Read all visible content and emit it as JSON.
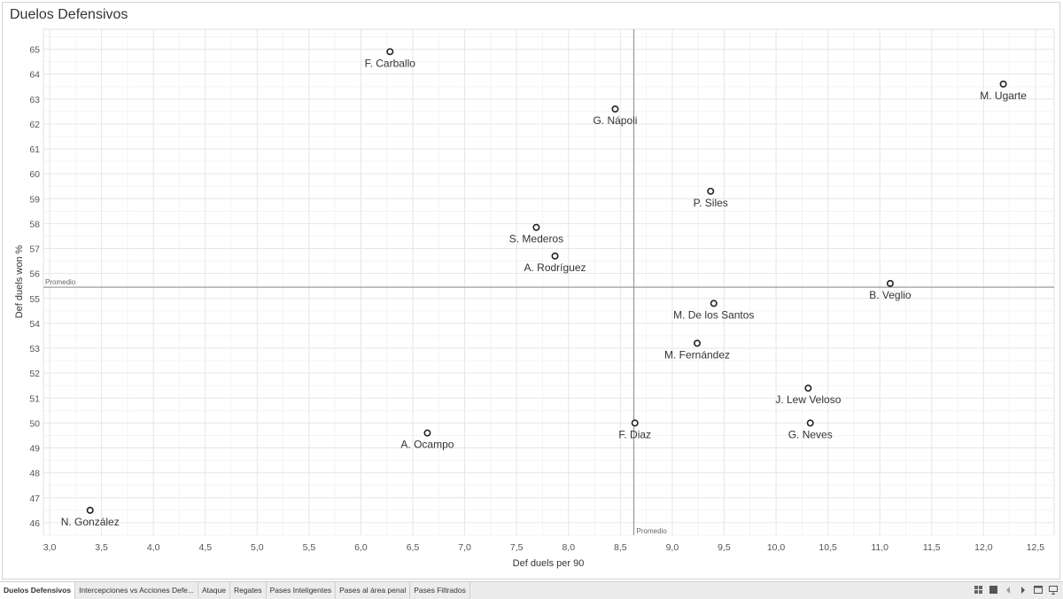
{
  "title": "Duelos Defensivos",
  "chart_data": {
    "type": "scatter",
    "title": "Duelos Defensivos",
    "xlabel": "Def duels per 90",
    "ylabel": "Def duels won %",
    "xlim": [
      2.94,
      12.68
    ],
    "ylim": [
      45.5,
      65.8
    ],
    "xticks": [
      3.0,
      3.5,
      4.0,
      4.5,
      5.0,
      5.5,
      6.0,
      6.5,
      7.0,
      7.5,
      8.0,
      8.5,
      9.0,
      9.5,
      10.0,
      10.5,
      11.0,
      11.5,
      12.0,
      12.5
    ],
    "xtick_labels": [
      "3,0",
      "3,5",
      "4,0",
      "4,5",
      "5,0",
      "5,5",
      "6,0",
      "6,5",
      "7,0",
      "7,5",
      "8,0",
      "8,5",
      "9,0",
      "9,5",
      "10,0",
      "10,5",
      "11,0",
      "11,5",
      "12,0",
      "12,5"
    ],
    "yticks": [
      46,
      47,
      48,
      49,
      50,
      51,
      52,
      53,
      54,
      55,
      56,
      57,
      58,
      59,
      60,
      61,
      62,
      63,
      64,
      65
    ],
    "ytick_labels": [
      "46",
      "47",
      "48",
      "49",
      "50",
      "51",
      "52",
      "53",
      "54",
      "55",
      "56",
      "57",
      "58",
      "59",
      "60",
      "61",
      "62",
      "63",
      "64",
      "65"
    ],
    "grid": true,
    "reference_lines": [
      {
        "axis": "x",
        "value": 8.63,
        "label": "Promedio"
      },
      {
        "axis": "y",
        "value": 55.45,
        "label": "Promedio"
      }
    ],
    "points": [
      {
        "name": "F. Carballo",
        "x": 6.28,
        "y": 64.9,
        "label_pos": "below"
      },
      {
        "name": "M. Ugarte",
        "x": 12.19,
        "y": 63.6,
        "label_pos": "below"
      },
      {
        "name": "G. Nápoli",
        "x": 8.45,
        "y": 62.6,
        "label_pos": "below"
      },
      {
        "name": "P. Siles",
        "x": 9.37,
        "y": 59.3,
        "label_pos": "below"
      },
      {
        "name": "S. Mederos",
        "x": 7.69,
        "y": 57.85,
        "label_pos": "below"
      },
      {
        "name": "A. Rodríguez",
        "x": 7.87,
        "y": 56.7,
        "label_pos": "below"
      },
      {
        "name": "B. Veglio",
        "x": 11.1,
        "y": 55.6,
        "label_pos": "below"
      },
      {
        "name": "M. De los Santos",
        "x": 9.4,
        "y": 54.8,
        "label_pos": "below"
      },
      {
        "name": "M. Fernández",
        "x": 9.24,
        "y": 53.2,
        "label_pos": "below"
      },
      {
        "name": "J. Lew Veloso",
        "x": 10.31,
        "y": 51.4,
        "label_pos": "below"
      },
      {
        "name": "F. Diaz",
        "x": 8.64,
        "y": 50.0,
        "label_pos": "below"
      },
      {
        "name": "G. Neves",
        "x": 10.33,
        "y": 50.0,
        "label_pos": "below"
      },
      {
        "name": "A. Ocampo",
        "x": 6.64,
        "y": 49.6,
        "label_pos": "below"
      },
      {
        "name": "N. González",
        "x": 3.39,
        "y": 46.5,
        "label_pos": "below"
      }
    ]
  },
  "tabs": [
    {
      "label": "Duelos Defensivos",
      "active": true
    },
    {
      "label": "Intercepciones vs Acciones Defe...",
      "active": false
    },
    {
      "label": "Ataque",
      "active": false
    },
    {
      "label": "Regates",
      "active": false
    },
    {
      "label": "Pases Inteligentes",
      "active": false
    },
    {
      "label": "Pases al área penal",
      "active": false
    },
    {
      "label": "Pases Filtrados",
      "active": false
    }
  ],
  "controls": [
    {
      "name": "grid-view-icon"
    },
    {
      "name": "filmstrip-view-icon"
    },
    {
      "name": "prev-tab-icon"
    },
    {
      "name": "next-tab-icon"
    },
    {
      "name": "show-tabs-icon"
    },
    {
      "name": "presentation-icon"
    }
  ]
}
